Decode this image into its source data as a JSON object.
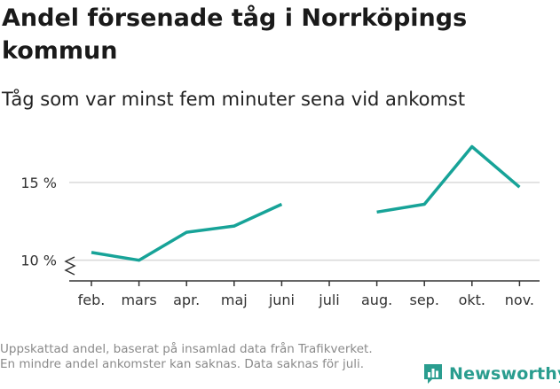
{
  "title": "Andel försenade tåg i Norrköpings kommun",
  "subtitle": "Tåg som var minst fem minuter sena vid ankomst",
  "footnote": "Uppskattad andel, baserat på insamlad data från Trafikverket. En mindre andel ankomster kan saknas. Data saknas för juli.",
  "brand": {
    "name": "Newsworthy",
    "icon": "bar-chart-speech-bubble-icon"
  },
  "colors": {
    "line": "#17a398",
    "grid": "#d9d9d9",
    "axis": "#333333",
    "brand": "#2a9d8f"
  },
  "chart_data": {
    "type": "line",
    "categories": [
      "feb.",
      "mars",
      "apr.",
      "maj",
      "juni",
      "juli",
      "aug.",
      "sep.",
      "okt.",
      "nov."
    ],
    "series": [
      {
        "values": [
          10.5,
          10.0,
          11.8,
          12.2,
          13.6,
          null,
          13.1,
          13.6,
          17.3,
          14.7
        ]
      }
    ],
    "y_ticks": [
      10,
      15
    ],
    "y_tick_labels": [
      "10 %",
      "15 %"
    ],
    "ylim": [
      8.5,
      17.9
    ],
    "axis_break": true,
    "grid": true,
    "xlabel": "",
    "ylabel": ""
  }
}
